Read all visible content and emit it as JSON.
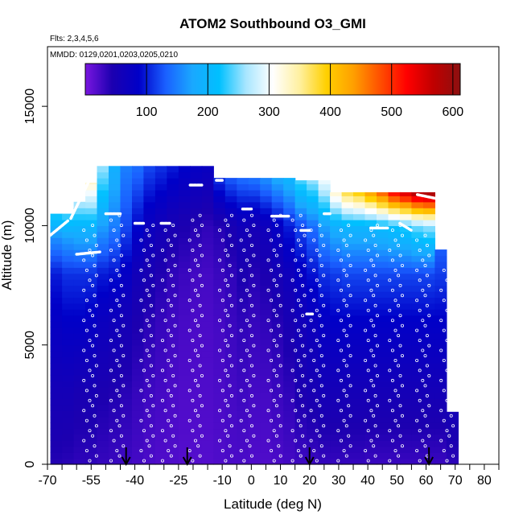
{
  "chart_data": {
    "type": "heatmap",
    "title": "ATOM2 Southbound O3_GMI",
    "flights_note": "Flts: 2,3,4,5,6",
    "date_note": "MMDD: 0129,0201,0203,0205,0210",
    "xlabel": "Latitude (deg N)",
    "ylabel": "Altitude (m)",
    "xlim": [
      -70,
      85
    ],
    "ylim": [
      0,
      17500
    ],
    "x_ticks": [
      -70,
      -55,
      -40,
      -25,
      -10,
      0,
      10,
      20,
      30,
      40,
      50,
      60,
      70,
      80
    ],
    "x_minor_ticks": [
      -65,
      -60,
      -50,
      -45,
      -35,
      -30,
      -20,
      -15,
      -5,
      5,
      15,
      25,
      35,
      45,
      55,
      65,
      75,
      85
    ],
    "y_ticks": [
      0,
      5000,
      10000,
      15000
    ],
    "colorbar": {
      "range": [
        0,
        612
      ],
      "ticks": [
        100,
        200,
        300,
        400,
        500,
        600
      ],
      "colors": [
        "#7a16e0",
        "#1c00b0",
        "#0000c8",
        "#1a60ff",
        "#1aa8ff",
        "#00c0ff",
        "#a8e6ff",
        "#ffffff",
        "#fff0a0",
        "#ffd000",
        "#ffa000",
        "#ff5000",
        "#ff0000",
        "#c00000",
        "#8c1010"
      ]
    },
    "field_description": "ozone mixing ratio mostly 0-100 in the lower troposphere, rising to 150-300 near 10000 m and 400-600 near 11000 m at northern latitudes",
    "columns": [
      {
        "lat": -67,
        "top": 10500,
        "profile": [
          [
            0,
            40
          ],
          [
            3000,
            55
          ],
          [
            6000,
            80
          ],
          [
            8000,
            100
          ],
          [
            9500,
            160
          ],
          [
            10500,
            230
          ]
        ]
      },
      {
        "lat": -63,
        "top": 10500,
        "profile": [
          [
            0,
            38
          ],
          [
            3000,
            55
          ],
          [
            6000,
            85
          ],
          [
            8000,
            110
          ],
          [
            9500,
            170
          ],
          [
            10500,
            240
          ]
        ]
      },
      {
        "lat": -59,
        "top": 11000,
        "profile": [
          [
            0,
            35
          ],
          [
            3000,
            50
          ],
          [
            6000,
            85
          ],
          [
            8000,
            110
          ],
          [
            10000,
            200
          ],
          [
            11000,
            270
          ]
        ]
      },
      {
        "lat": -55,
        "top": 11800,
        "profile": [
          [
            0,
            35
          ],
          [
            3000,
            50
          ],
          [
            6000,
            80
          ],
          [
            8000,
            110
          ],
          [
            10000,
            200
          ],
          [
            11800,
            330
          ]
        ]
      },
      {
        "lat": -51,
        "top": 12500,
        "profile": [
          [
            0,
            32
          ],
          [
            3000,
            45
          ],
          [
            6000,
            70
          ],
          [
            8000,
            100
          ],
          [
            10000,
            170
          ],
          [
            12500,
            260
          ]
        ]
      },
      {
        "lat": -47,
        "top": 12500,
        "profile": [
          [
            0,
            30
          ],
          [
            3000,
            42
          ],
          [
            6000,
            65
          ],
          [
            8000,
            95
          ],
          [
            10000,
            150
          ],
          [
            12500,
            190
          ]
        ]
      },
      {
        "lat": -43,
        "top": 12500,
        "profile": [
          [
            0,
            28
          ],
          [
            3000,
            38
          ],
          [
            6000,
            55
          ],
          [
            8000,
            80
          ],
          [
            10000,
            120
          ],
          [
            12500,
            150
          ]
        ]
      },
      {
        "lat": -39,
        "top": 12500,
        "profile": [
          [
            0,
            25
          ],
          [
            3000,
            32
          ],
          [
            6000,
            45
          ],
          [
            8000,
            60
          ],
          [
            10000,
            90
          ],
          [
            12500,
            140
          ]
        ]
      },
      {
        "lat": -35,
        "top": 12500,
        "profile": [
          [
            0,
            22
          ],
          [
            3000,
            28
          ],
          [
            6000,
            38
          ],
          [
            8000,
            50
          ],
          [
            10000,
            70
          ],
          [
            12500,
            120
          ]
        ]
      },
      {
        "lat": -31,
        "top": 12500,
        "profile": [
          [
            0,
            20
          ],
          [
            3000,
            25
          ],
          [
            6000,
            32
          ],
          [
            8000,
            42
          ],
          [
            10000,
            60
          ],
          [
            12500,
            110
          ]
        ]
      },
      {
        "lat": -27,
        "top": 12500,
        "profile": [
          [
            0,
            20
          ],
          [
            3000,
            22
          ],
          [
            6000,
            28
          ],
          [
            8000,
            35
          ],
          [
            10000,
            50
          ],
          [
            12500,
            100
          ]
        ]
      },
      {
        "lat": -23,
        "top": 12500,
        "profile": [
          [
            0,
            18
          ],
          [
            3000,
            20
          ],
          [
            6000,
            24
          ],
          [
            8000,
            30
          ],
          [
            10000,
            45
          ],
          [
            12500,
            90
          ]
        ]
      },
      {
        "lat": -19,
        "top": 12500,
        "profile": [
          [
            0,
            18
          ],
          [
            3000,
            20
          ],
          [
            6000,
            22
          ],
          [
            8000,
            26
          ],
          [
            10000,
            40
          ],
          [
            12500,
            80
          ]
        ]
      },
      {
        "lat": -15,
        "top": 12500,
        "profile": [
          [
            0,
            18
          ],
          [
            3000,
            20
          ],
          [
            6000,
            22
          ],
          [
            8000,
            25
          ],
          [
            10000,
            35
          ],
          [
            12500,
            75
          ]
        ]
      },
      {
        "lat": -11,
        "top": 12000,
        "profile": [
          [
            0,
            20
          ],
          [
            3000,
            22
          ],
          [
            6000,
            25
          ],
          [
            8000,
            30
          ],
          [
            10000,
            40
          ],
          [
            12000,
            110
          ]
        ]
      },
      {
        "lat": -7,
        "top": 12000,
        "profile": [
          [
            0,
            22
          ],
          [
            3000,
            25
          ],
          [
            6000,
            30
          ],
          [
            8000,
            35
          ],
          [
            10000,
            50
          ],
          [
            12000,
            130
          ]
        ]
      },
      {
        "lat": -3,
        "top": 12000,
        "profile": [
          [
            0,
            22
          ],
          [
            3000,
            28
          ],
          [
            6000,
            35
          ],
          [
            8000,
            45
          ],
          [
            10000,
            60
          ],
          [
            12000,
            140
          ]
        ]
      },
      {
        "lat": 1,
        "top": 12000,
        "profile": [
          [
            0,
            20
          ],
          [
            3000,
            25
          ],
          [
            6000,
            32
          ],
          [
            8000,
            40
          ],
          [
            10000,
            55
          ],
          [
            12000,
            145
          ]
        ]
      },
      {
        "lat": 5,
        "top": 12000,
        "profile": [
          [
            0,
            20
          ],
          [
            3000,
            25
          ],
          [
            6000,
            35
          ],
          [
            8000,
            45
          ],
          [
            10000,
            65
          ],
          [
            12000,
            160
          ]
        ]
      },
      {
        "lat": 9,
        "top": 12000,
        "profile": [
          [
            0,
            22
          ],
          [
            3000,
            30
          ],
          [
            6000,
            40
          ],
          [
            8000,
            55
          ],
          [
            10000,
            80
          ],
          [
            12000,
            180
          ]
        ]
      },
      {
        "lat": 13,
        "top": 12000,
        "profile": [
          [
            0,
            25
          ],
          [
            3000,
            35
          ],
          [
            6000,
            50
          ],
          [
            8000,
            65
          ],
          [
            10000,
            100
          ],
          [
            12000,
            200
          ]
        ]
      },
      {
        "lat": 17,
        "top": 11900,
        "profile": [
          [
            0,
            28
          ],
          [
            3000,
            45
          ],
          [
            6000,
            60
          ],
          [
            8000,
            80
          ],
          [
            10000,
            120
          ],
          [
            11900,
            240
          ]
        ]
      },
      {
        "lat": 21,
        "top": 11900,
        "profile": [
          [
            0,
            30
          ],
          [
            3000,
            50
          ],
          [
            6000,
            70
          ],
          [
            8000,
            95
          ],
          [
            10000,
            140
          ],
          [
            11900,
            260
          ]
        ]
      },
      {
        "lat": 25,
        "top": 11900,
        "profile": [
          [
            0,
            32
          ],
          [
            3000,
            55
          ],
          [
            6000,
            80
          ],
          [
            8000,
            110
          ],
          [
            10000,
            170
          ],
          [
            11900,
            300
          ]
        ]
      },
      {
        "lat": 29,
        "top": 11400,
        "profile": [
          [
            0,
            32
          ],
          [
            3000,
            55
          ],
          [
            6000,
            85
          ],
          [
            8000,
            115
          ],
          [
            10000,
            190
          ],
          [
            11400,
            330
          ]
        ]
      },
      {
        "lat": 33,
        "top": 11400,
        "profile": [
          [
            0,
            32
          ],
          [
            3000,
            55
          ],
          [
            6000,
            85
          ],
          [
            8000,
            120
          ],
          [
            10000,
            200
          ],
          [
            11400,
            380
          ]
        ]
      },
      {
        "lat": 37,
        "top": 11400,
        "profile": [
          [
            0,
            32
          ],
          [
            3000,
            55
          ],
          [
            6000,
            85
          ],
          [
            8000,
            120
          ],
          [
            10000,
            200
          ],
          [
            11400,
            400
          ]
        ]
      },
      {
        "lat": 41,
        "top": 11400,
        "profile": [
          [
            0,
            30
          ],
          [
            3000,
            55
          ],
          [
            6000,
            85
          ],
          [
            8000,
            120
          ],
          [
            10000,
            200
          ],
          [
            11400,
            440
          ]
        ]
      },
      {
        "lat": 45,
        "top": 11400,
        "profile": [
          [
            0,
            30
          ],
          [
            3000,
            55
          ],
          [
            6000,
            85
          ],
          [
            8000,
            120
          ],
          [
            10000,
            210
          ],
          [
            11400,
            480
          ]
        ]
      },
      {
        "lat": 49,
        "top": 11400,
        "profile": [
          [
            0,
            30
          ],
          [
            3000,
            55
          ],
          [
            6000,
            85
          ],
          [
            8000,
            120
          ],
          [
            10000,
            220
          ],
          [
            11400,
            530
          ]
        ]
      },
      {
        "lat": 53,
        "top": 11400,
        "profile": [
          [
            0,
            30
          ],
          [
            3000,
            55
          ],
          [
            6000,
            85
          ],
          [
            8000,
            120
          ],
          [
            10000,
            230
          ],
          [
            11400,
            560
          ]
        ]
      },
      {
        "lat": 57,
        "top": 11400,
        "profile": [
          [
            0,
            30
          ],
          [
            3000,
            55
          ],
          [
            6000,
            85
          ],
          [
            8000,
            120
          ],
          [
            10000,
            250
          ],
          [
            11400,
            590
          ]
        ]
      },
      {
        "lat": 61,
        "top": 11400,
        "profile": [
          [
            0,
            30
          ],
          [
            3000,
            55
          ],
          [
            6000,
            85
          ],
          [
            8000,
            120
          ],
          [
            10000,
            260
          ],
          [
            11400,
            600
          ]
        ]
      },
      {
        "lat": 65,
        "top": 9000,
        "profile": [
          [
            0,
            30
          ],
          [
            3000,
            55
          ],
          [
            6000,
            85
          ],
          [
            9000,
            130
          ]
        ]
      },
      {
        "lat": 69,
        "top": 2200,
        "profile": [
          [
            0,
            35
          ],
          [
            2200,
            55
          ]
        ]
      }
    ],
    "sample_tracks": [
      {
        "lat": -56,
        "alt_start": 0,
        "alt_end": 10000
      },
      {
        "lat": -47,
        "alt_start": 0,
        "alt_end": 10300
      },
      {
        "lat": -37,
        "alt_start": 0,
        "alt_end": 10100
      },
      {
        "lat": -29,
        "alt_start": 0,
        "alt_end": 10000
      },
      {
        "lat": -20,
        "alt_start": 0,
        "alt_end": 10500
      },
      {
        "lat": -10,
        "alt_start": 0,
        "alt_end": 10500
      },
      {
        "lat": -2,
        "alt_start": 0,
        "alt_end": 10600
      },
      {
        "lat": 7,
        "alt_start": 0,
        "alt_end": 10300
      },
      {
        "lat": 15,
        "alt_start": 0,
        "alt_end": 10400
      },
      {
        "lat": 22,
        "alt_start": 0,
        "alt_end": 10000
      },
      {
        "lat": 31,
        "alt_start": 0,
        "alt_end": 10200
      },
      {
        "lat": 40,
        "alt_start": 0,
        "alt_end": 10200
      },
      {
        "lat": 49,
        "alt_start": 0,
        "alt_end": 10200
      },
      {
        "lat": 58,
        "alt_start": 0,
        "alt_end": 9800
      },
      {
        "lat": 66,
        "alt_start": 0,
        "alt_end": 8200
      }
    ],
    "flight_level_segments": [
      {
        "lat_start": -69,
        "lat_end": -63,
        "alt_start": 9600,
        "alt_end": 10200
      },
      {
        "lat_start": -62,
        "lat_end": -54,
        "alt_start": 10300,
        "alt_end": 12300
      },
      {
        "lat_start": -60,
        "lat_end": -52,
        "alt_start": 8800,
        "alt_end": 8900
      },
      {
        "lat_start": -50,
        "lat_end": -45,
        "alt_start": 10500,
        "alt_end": 10500
      },
      {
        "lat_start": -40,
        "lat_end": -37,
        "alt_start": 10100,
        "alt_end": 10100
      },
      {
        "lat_start": -31,
        "lat_end": -28,
        "alt_start": 10100,
        "alt_end": 10100
      },
      {
        "lat_start": -21,
        "lat_end": -17,
        "alt_start": 11700,
        "alt_end": 11700
      },
      {
        "lat_start": -12,
        "lat_end": -10,
        "alt_start": 11900,
        "alt_end": 11900
      },
      {
        "lat_start": -3,
        "lat_end": 0,
        "alt_start": 10700,
        "alt_end": 10700
      },
      {
        "lat_start": 7,
        "lat_end": 13,
        "alt_start": 10400,
        "alt_end": 10400
      },
      {
        "lat_start": 17,
        "lat_end": 20,
        "alt_start": 9800,
        "alt_end": 9800
      },
      {
        "lat_start": 19,
        "lat_end": 21,
        "alt_start": 6300,
        "alt_end": 6300
      },
      {
        "lat_start": 25,
        "lat_end": 27,
        "alt_start": 10500,
        "alt_end": 10500
      },
      {
        "lat_start": 41,
        "lat_end": 47,
        "alt_start": 9900,
        "alt_end": 9900
      },
      {
        "lat_start": 51,
        "lat_end": 55,
        "alt_start": 10100,
        "alt_end": 9800
      },
      {
        "lat_start": 57,
        "lat_end": 65,
        "alt_start": 11300,
        "alt_end": 11100
      }
    ],
    "arrows_lat": [
      -43,
      -22,
      20,
      61
    ]
  }
}
